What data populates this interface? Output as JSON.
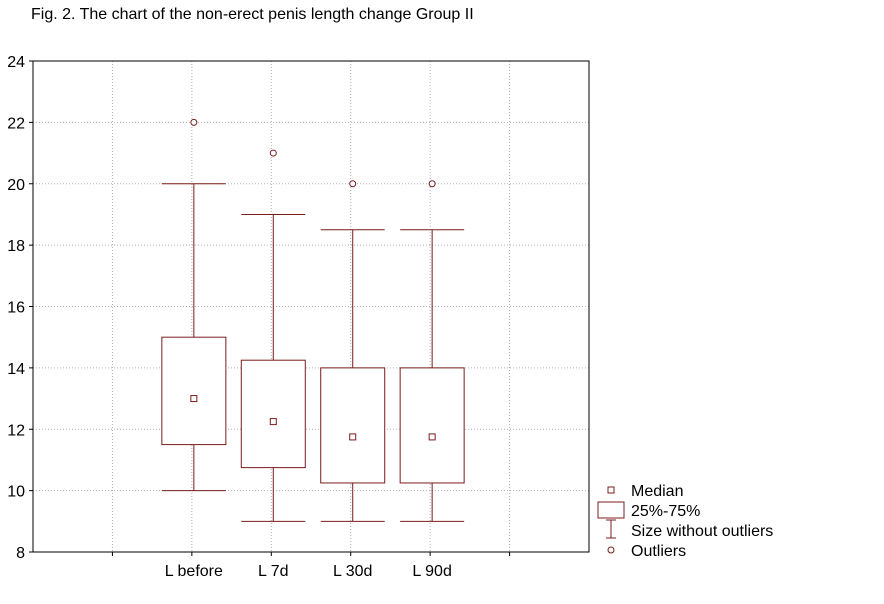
{
  "figure": {
    "caption": "Fig. 2. The chart of the non-erect penis length change Group II"
  },
  "chart_data": {
    "type": "box",
    "title": "Fig. 2. The chart of the non-erect penis length change Group II",
    "xlabel": "",
    "ylabel": "",
    "ylim": [
      8,
      24
    ],
    "yticks": [
      "8",
      "10",
      "12",
      "14",
      "16",
      "18",
      "20",
      "22",
      "24"
    ],
    "grid": true,
    "legend_position": "bottom-right",
    "categories": [
      "L before",
      "L 7d",
      "L 30d",
      "L 90d"
    ],
    "series": [
      {
        "category": "L before",
        "whisker_low": 10,
        "q1": 11.5,
        "median": 13,
        "q3": 15,
        "whisker_high": 20,
        "outliers": [
          22
        ]
      },
      {
        "category": "L 7d",
        "whisker_low": 9,
        "q1": 10.75,
        "median": 12.25,
        "q3": 14.25,
        "whisker_high": 19,
        "outliers": [
          21
        ]
      },
      {
        "category": "L 30d",
        "whisker_low": 9,
        "q1": 10.25,
        "median": 11.75,
        "q3": 14,
        "whisker_high": 18.5,
        "outliers": [
          20
        ]
      },
      {
        "category": "L 90d",
        "whisker_low": 9,
        "q1": 10.25,
        "median": 11.75,
        "q3": 14,
        "whisker_high": 18.5,
        "outliers": [
          20
        ]
      }
    ],
    "legend": [
      {
        "key": "median",
        "label": "Median"
      },
      {
        "key": "box",
        "label": "25%-75%"
      },
      {
        "key": "whisker",
        "label": "Size without outliers"
      },
      {
        "key": "outlier",
        "label": "Outliers"
      }
    ],
    "colors": {
      "marks": "#7a1c1c",
      "grid": "#b0b0b0",
      "frame": "#000000"
    }
  }
}
